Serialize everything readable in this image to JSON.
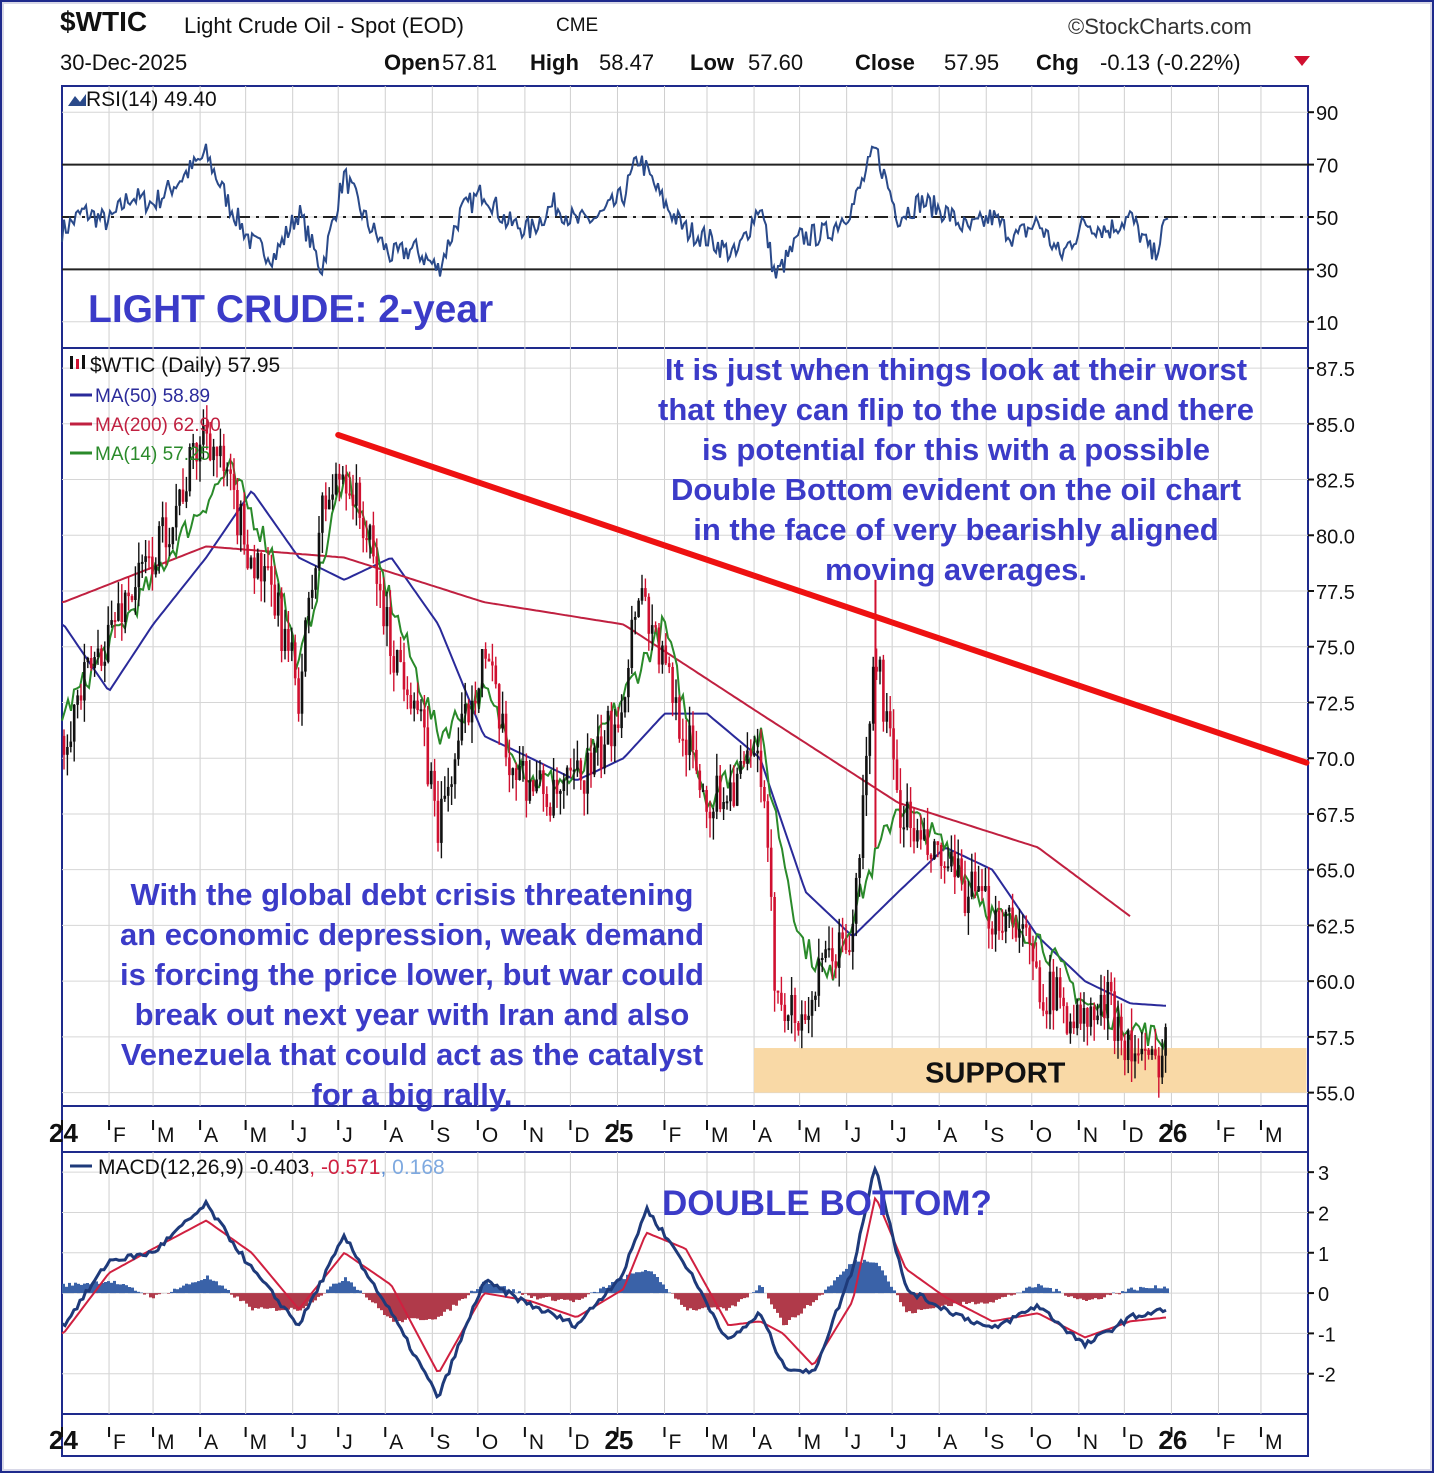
{
  "header": {
    "symbol": "$WTIC",
    "name": "Light Crude Oil - Spot (EOD)",
    "exchange": "CME",
    "watermark": "©StockCharts.com",
    "date": "30-Dec-2025",
    "open_label": "Open",
    "open": "57.81",
    "high_label": "High",
    "high": "58.47",
    "low_label": "Low",
    "low": "57.60",
    "close_label": "Close",
    "close": "57.95",
    "chg_label": "Chg",
    "chg": "-0.13 (-0.22%)",
    "chg_arrow_icon": "down-triangle-icon"
  },
  "annotations": {
    "title": "LIGHT CRUDE: 2-year",
    "upper": "It is just when things look at their worst\nthat they can flip to the upside and there\nis potential for this with a possible\nDouble Bottom evident on the oil chart\nin the face of very bearishly aligned\nmoving averages.",
    "lower": "With the global debt crisis threatening\nan economic depression, weak demand\nis forcing the price lower, but war could\nbreak out next year with Iran and also\nVenezuela that could act as the catalyst\nfor a big rally.",
    "support": "SUPPORT",
    "double_bottom": "DOUBLE BOTTOM?"
  },
  "colors": {
    "border": "#1e2a8c",
    "up": "#111111",
    "down": "#d01030",
    "ma50": "#2a2a9a",
    "ma200": "#c02040",
    "ma14": "#2a8a2a",
    "rsi": "#2a4a8a",
    "macd": "#1e3a7a",
    "signal": "#d02040",
    "hist_pos": "#3a62a8",
    "hist_neg": "#b03a4a",
    "trendline": "#ee1111",
    "support_zone": "#f9d9a6",
    "annotation": "#3b3bc8"
  },
  "chart_data": [
    {
      "type": "line",
      "panel": "rsi",
      "legend": "RSI(14) 49.40",
      "legend_icon": "rsi-icon",
      "ylim": [
        0,
        100
      ],
      "yticks": [
        90,
        70,
        50,
        30,
        10
      ],
      "reference_lines": [
        70,
        50,
        30
      ],
      "series": [
        {
          "name": "RSI(14)",
          "x": [
            "2024-01-02",
            "2024-01-15",
            "2024-02-01",
            "2024-02-15",
            "2024-03-01",
            "2024-03-20",
            "2024-04-05",
            "2024-04-20",
            "2024-05-05",
            "2024-05-20",
            "2024-06-05",
            "2024-06-20",
            "2024-07-05",
            "2024-07-20",
            "2024-08-05",
            "2024-08-20",
            "2024-09-05",
            "2024-09-20",
            "2024-10-05",
            "2024-10-20",
            "2024-11-05",
            "2024-11-20",
            "2024-12-05",
            "2024-12-20",
            "2025-01-05",
            "2025-01-15",
            "2025-02-01",
            "2025-02-15",
            "2025-03-01",
            "2025-03-20",
            "2025-04-05",
            "2025-04-15",
            "2025-05-01",
            "2025-05-20",
            "2025-06-05",
            "2025-06-20",
            "2025-07-05",
            "2025-07-20",
            "2025-08-05",
            "2025-08-20",
            "2025-09-05",
            "2025-09-20",
            "2025-10-05",
            "2025-10-20",
            "2025-11-05",
            "2025-11-20",
            "2025-12-05",
            "2025-12-20",
            "2025-12-30"
          ],
          "values": [
            45,
            52,
            48,
            58,
            55,
            65,
            74,
            55,
            40,
            35,
            52,
            30,
            66,
            48,
            35,
            38,
            30,
            52,
            60,
            48,
            45,
            55,
            48,
            50,
            58,
            73,
            55,
            45,
            42,
            35,
            55,
            27,
            42,
            44,
            54,
            76,
            50,
            56,
            52,
            45,
            50,
            42,
            48,
            35,
            48,
            45,
            50,
            35,
            49.4
          ]
        }
      ]
    },
    {
      "type": "candlestick",
      "panel": "price",
      "legend": "$WTIC (Daily) 57.95",
      "legend_icon": "candlestick-icon",
      "ylim": [
        54.4,
        88.4
      ],
      "yticks": [
        "87.5",
        "85.0",
        "82.5",
        "80.0",
        "77.5",
        "75.0",
        "72.5",
        "70.0",
        "67.5",
        "65.0",
        "62.5",
        "60.0",
        "57.5",
        "55.0"
      ],
      "x_tick_labels": [
        "24",
        "F",
        "M",
        "A",
        "M",
        "J",
        "J",
        "A",
        "S",
        "O",
        "N",
        "D",
        "25",
        "F",
        "M",
        "A",
        "M",
        "J",
        "J",
        "A",
        "S",
        "O",
        "N",
        "D",
        "26",
        "F",
        "M"
      ],
      "series": [
        {
          "name": "$WTIC",
          "x": [
            "2024-01-02",
            "2024-01-20",
            "2024-02-10",
            "2024-03-01",
            "2024-03-20",
            "2024-04-05",
            "2024-04-20",
            "2024-05-05",
            "2024-05-20",
            "2024-06-05",
            "2024-06-20",
            "2024-07-05",
            "2024-07-20",
            "2024-08-05",
            "2024-08-20",
            "2024-09-05",
            "2024-09-20",
            "2024-10-05",
            "2024-10-20",
            "2024-11-05",
            "2024-11-20",
            "2024-12-05",
            "2024-12-20",
            "2025-01-05",
            "2025-01-15",
            "2025-02-01",
            "2025-02-15",
            "2025-03-01",
            "2025-03-20",
            "2025-04-05",
            "2025-04-15",
            "2025-05-01",
            "2025-05-20",
            "2025-06-05",
            "2025-06-20",
            "2025-07-05",
            "2025-07-20",
            "2025-08-05",
            "2025-08-20",
            "2025-09-05",
            "2025-09-20",
            "2025-10-05",
            "2025-10-20",
            "2025-11-05",
            "2025-11-20",
            "2025-12-05",
            "2025-12-20",
            "2025-12-30"
          ],
          "values": [
            71,
            74,
            77,
            79,
            82,
            85,
            82,
            79,
            77,
            73,
            81,
            83,
            80,
            75,
            73,
            67,
            71,
            75,
            70,
            69,
            68,
            69,
            70,
            73,
            78,
            74,
            71,
            68,
            69,
            70,
            60,
            58,
            61,
            62,
            75,
            68,
            66,
            65,
            64,
            63,
            63,
            60,
            59,
            58,
            59,
            57,
            56,
            57.95
          ]
        },
        {
          "name": "MA(50) 58.89",
          "x": [
            "2024-01-02",
            "2024-02-01",
            "2024-03-01",
            "2024-04-05",
            "2024-05-05",
            "2024-06-05",
            "2024-07-05",
            "2024-08-05",
            "2024-09-05",
            "2024-10-05",
            "2024-11-05",
            "2024-12-05",
            "2025-01-05",
            "2025-02-01",
            "2025-03-01",
            "2025-04-05",
            "2025-05-05",
            "2025-06-05",
            "2025-07-05",
            "2025-08-05",
            "2025-09-05",
            "2025-10-05",
            "2025-11-05",
            "2025-12-05",
            "2025-12-30"
          ],
          "values": [
            76,
            73,
            76,
            79,
            82,
            79,
            78,
            79,
            76,
            71,
            70,
            69,
            70,
            72,
            72,
            70,
            64,
            62,
            64,
            66,
            65,
            62,
            60,
            59,
            58.89
          ]
        },
        {
          "name": "MA(200) 62.90",
          "x": [
            "2024-01-02",
            "2024-04-05",
            "2024-07-05",
            "2024-10-05",
            "2025-01-05",
            "2025-04-05",
            "2025-07-05",
            "2025-10-05",
            "2025-12-05"
          ],
          "values": [
            77,
            79.5,
            79,
            77,
            76,
            72,
            68,
            66,
            62.9
          ]
        },
        {
          "name": "MA(14) 57.25",
          "x": [
            "2024-01-02",
            "2024-03-20",
            "2024-04-20",
            "2024-05-20",
            "2024-06-05",
            "2024-07-05",
            "2024-08-05",
            "2024-09-05",
            "2024-10-05",
            "2024-11-05",
            "2024-12-05",
            "2025-01-15",
            "2025-02-01",
            "2025-03-01",
            "2025-04-05",
            "2025-05-01",
            "2025-05-20",
            "2025-06-05",
            "2025-07-05",
            "2025-08-05",
            "2025-09-05",
            "2025-10-05",
            "2025-11-05",
            "2025-12-05",
            "2025-12-30"
          ],
          "values": [
            72,
            80,
            83,
            79,
            74,
            83,
            77,
            71,
            73,
            69,
            69,
            74,
            76,
            68,
            71,
            62,
            60,
            63,
            68,
            66,
            63,
            62,
            59,
            58,
            57.25
          ]
        }
      ],
      "trendline": {
        "from": {
          "x": "2024-07-01",
          "y": 84.5
        },
        "to": {
          "x": "2026-03-31",
          "y": 69.8
        }
      },
      "support_zone": {
        "from_x": "2025-04-01",
        "to_x": "2026-03-31",
        "y_low": 55.0,
        "y_high": 57.0
      }
    },
    {
      "type": "line",
      "panel": "macd",
      "legend_name": "MACD(12,26,9)",
      "legend_macd": "-0.403",
      "legend_signal": "-0.571",
      "legend_hist": "0.168",
      "legend_sep": ",",
      "legend_icon": "macd-icon",
      "ylim": [
        -3,
        3.5
      ],
      "yticks": [
        "3",
        "2",
        "1",
        "0",
        "-1",
        "-2"
      ],
      "x_tick_labels": [
        "24",
        "F",
        "M",
        "A",
        "M",
        "J",
        "J",
        "A",
        "S",
        "O",
        "N",
        "D",
        "25",
        "F",
        "M",
        "A",
        "M",
        "J",
        "J",
        "A",
        "S",
        "O",
        "N",
        "D",
        "26",
        "F",
        "M"
      ],
      "x": [
        "2024-01-02",
        "2024-02-01",
        "2024-03-01",
        "2024-04-05",
        "2024-05-05",
        "2024-06-05",
        "2024-07-05",
        "2024-08-05",
        "2024-09-05",
        "2024-10-05",
        "2024-11-05",
        "2024-12-05",
        "2025-01-05",
        "2025-01-20",
        "2025-02-15",
        "2025-03-15",
        "2025-04-05",
        "2025-04-20",
        "2025-05-10",
        "2025-06-05",
        "2025-06-20",
        "2025-07-10",
        "2025-08-05",
        "2025-09-05",
        "2025-10-05",
        "2025-11-05",
        "2025-12-05",
        "2025-12-30"
      ],
      "series": [
        {
          "name": "MACD",
          "values": [
            -0.8,
            0.8,
            1.0,
            2.2,
            0.6,
            -0.8,
            1.4,
            -0.5,
            -2.6,
            0.3,
            -0.3,
            -0.8,
            0.5,
            2.1,
            0.7,
            -1.2,
            -0.5,
            -1.8,
            -2.0,
            0.6,
            3.2,
            0.1,
            -0.4,
            -0.9,
            -0.3,
            -1.3,
            -0.6,
            -0.4
          ]
        },
        {
          "name": "Signal",
          "values": [
            -1.0,
            0.5,
            1.1,
            1.8,
            1.0,
            -0.4,
            1.0,
            0.2,
            -2.0,
            0.0,
            -0.2,
            -0.6,
            0.1,
            1.5,
            1.1,
            -0.8,
            -0.7,
            -1.0,
            -1.8,
            -0.2,
            2.4,
            0.6,
            -0.1,
            -0.7,
            -0.5,
            -1.1,
            -0.7,
            -0.6
          ]
        },
        {
          "name": "Histogram",
          "values": [
            0.2,
            0.3,
            -0.1,
            0.4,
            -0.4,
            -0.4,
            0.4,
            -0.7,
            -0.6,
            0.3,
            -0.1,
            -0.2,
            0.4,
            0.6,
            -0.4,
            -0.4,
            0.2,
            -0.8,
            -0.2,
            0.8,
            0.8,
            -0.5,
            -0.3,
            -0.2,
            0.2,
            -0.2,
            0.1,
            0.17
          ]
        }
      ]
    }
  ]
}
